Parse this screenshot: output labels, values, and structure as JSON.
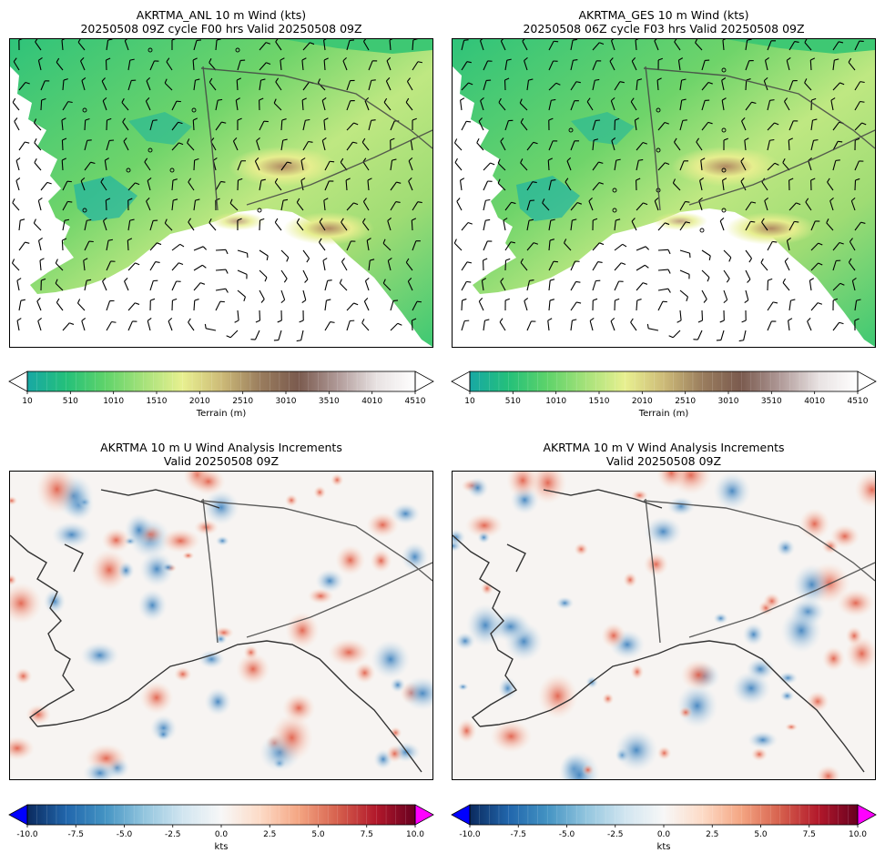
{
  "panels": [
    {
      "id": "anl",
      "title_line1": "AKRTMA_ANL 10 m Wind (kts)",
      "title_line2": "20250508 09Z cycle F00 hrs Valid 20250508 09Z",
      "kind": "terrain"
    },
    {
      "id": "ges",
      "title_line1": "AKRTMA_GES 10 m Wind (kts)",
      "title_line2": "20250508 06Z cycle F03 hrs Valid 20250508 09Z",
      "kind": "terrain"
    },
    {
      "id": "u_inc",
      "title_line1": "AKRTMA 10 m U Wind Analysis Increments",
      "title_line2": "Valid 20250508 09Z",
      "kind": "increment"
    },
    {
      "id": "v_inc",
      "title_line1": "AKRTMA 10 m V Wind Analysis Increments",
      "title_line2": "Valid 20250508 09Z",
      "kind": "increment"
    }
  ],
  "terrain_colorbar": {
    "label": "Terrain (m)",
    "ticks": [
      "10",
      "510",
      "1010",
      "1510",
      "2010",
      "2510",
      "3010",
      "3510",
      "4010",
      "4510"
    ],
    "min": 10,
    "max": 4510,
    "colors": [
      "#18a8a4",
      "#24c07a",
      "#5ed36a",
      "#a6e27a",
      "#e8f090",
      "#cdbb78",
      "#9a7d5e",
      "#7a5a4e",
      "#b09a98",
      "#e8e2e2",
      "#ffffff"
    ]
  },
  "increment_colorbar": {
    "label": "kts",
    "ticks": [
      "-10.0",
      "-7.5",
      "-5.0",
      "-2.5",
      "0.0",
      "2.5",
      "5.0",
      "7.5",
      "10.0"
    ],
    "min": -10,
    "max": 10,
    "under_color": "#0000ff",
    "over_color": "#ff00ff",
    "colors": [
      "#0b2a5e",
      "#2166ac",
      "#4393c3",
      "#92c5de",
      "#d1e5f0",
      "#f7f7f7",
      "#fddbc7",
      "#f4a582",
      "#d6604d",
      "#b2182b",
      "#67001f"
    ]
  }
}
